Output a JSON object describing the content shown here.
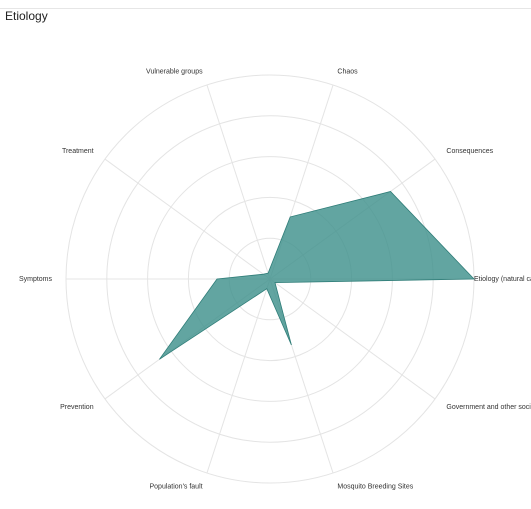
{
  "chart_data": {
    "type": "radar",
    "title": "Etiology",
    "categories": [
      "Etiology (natural causes)",
      "Consequences",
      "Chaos",
      "Vulnerable groups",
      "Treatment",
      "Symptoms",
      "Prevention",
      "Population's fault",
      "Mosquito Breeding Sites",
      "Government and other social causes"
    ],
    "series": [
      {
        "values": [
          100,
          73,
          32,
          3,
          4,
          26,
          67,
          5,
          34,
          3
        ]
      }
    ],
    "rlim": [
      0,
      100
    ],
    "grid": true,
    "fill_color": "#3f918c",
    "fill_opacity": 0.82
  }
}
